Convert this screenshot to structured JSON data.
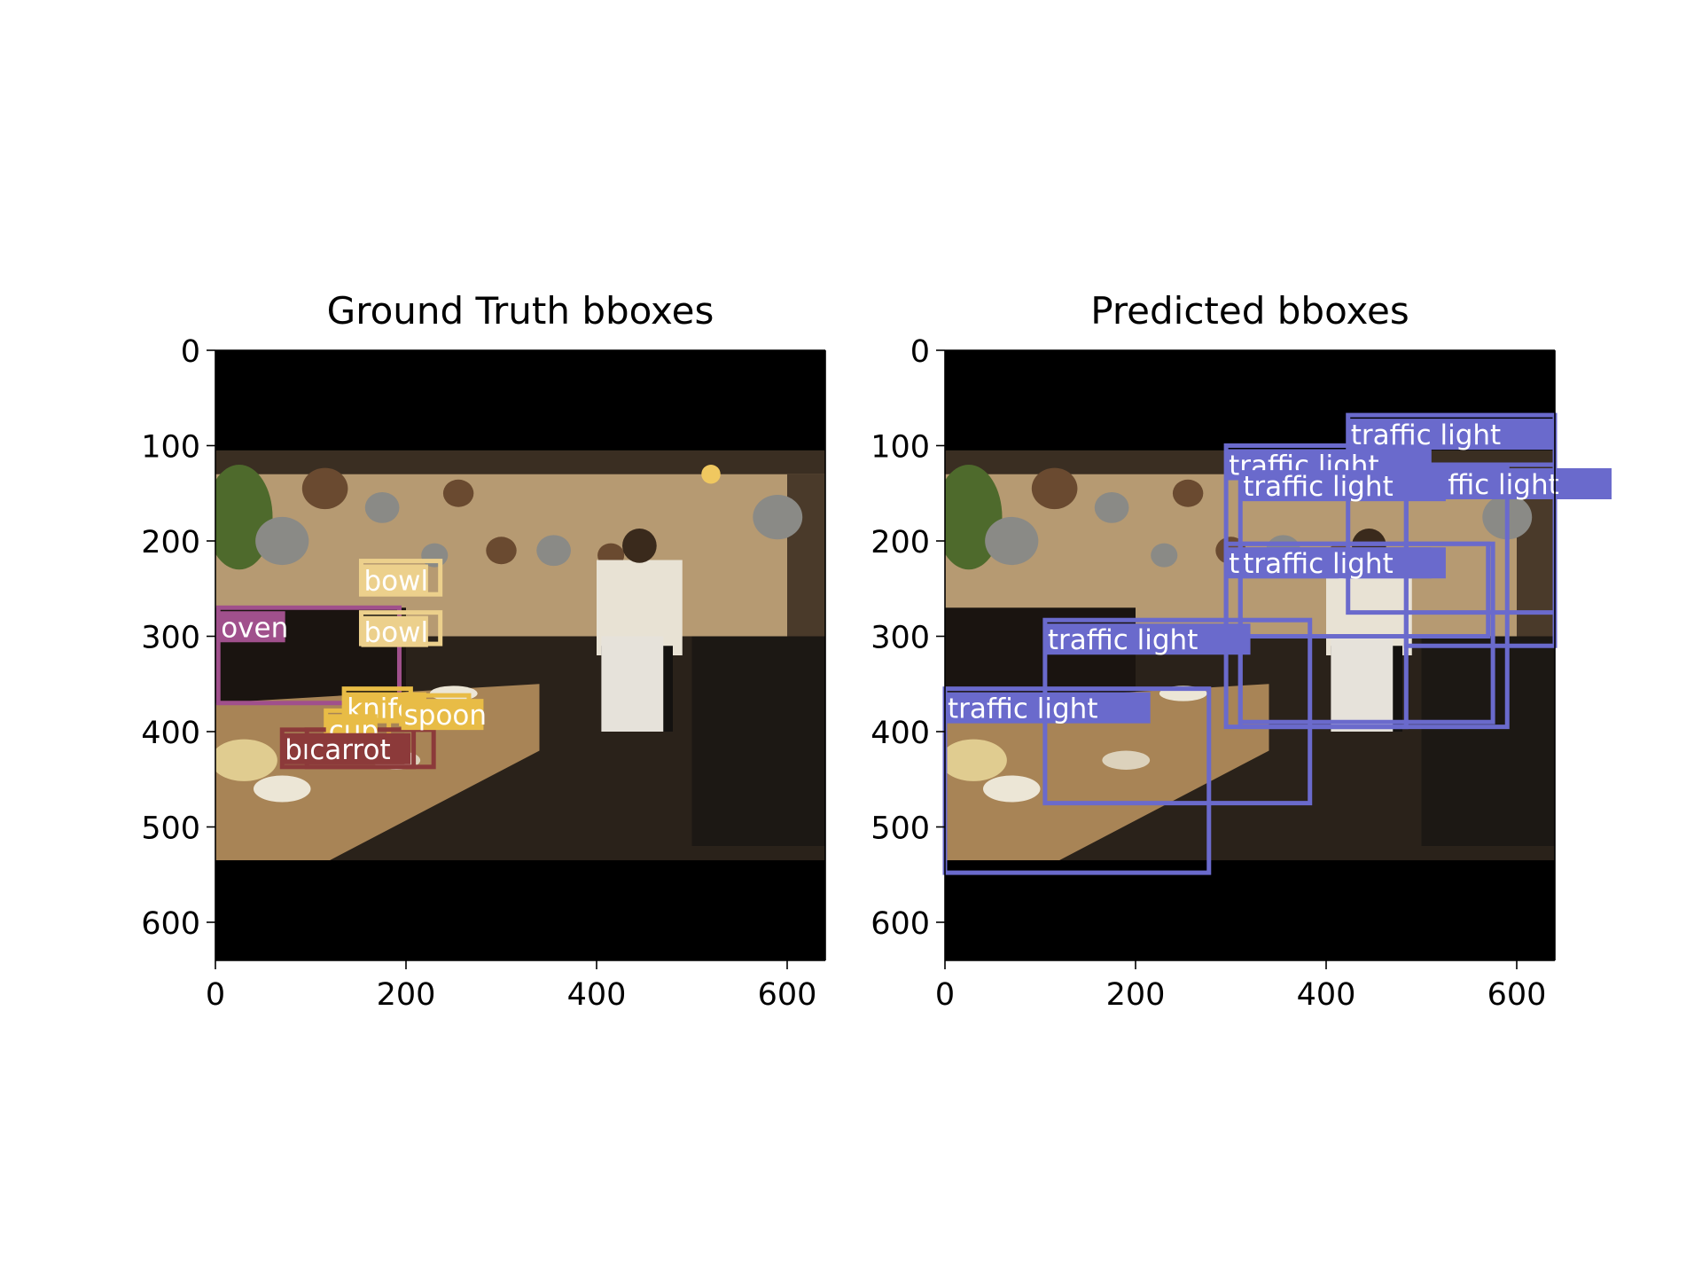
{
  "chart_data": [
    {
      "type": "image_with_bboxes",
      "title": "Ground Truth bboxes",
      "xlim": [
        0,
        640
      ],
      "ylim": [
        640,
        0
      ],
      "xticks": [
        0,
        200,
        400,
        600
      ],
      "yticks": [
        0,
        100,
        200,
        300,
        400,
        500,
        600
      ],
      "image_region": {
        "x0": 0,
        "y0": 105,
        "x1": 640,
        "y1": 535
      },
      "boxes": [
        {
          "label": "oven",
          "color": "#a0508c",
          "x0": 3,
          "y0": 270,
          "x1": 193,
          "y1": 370
        },
        {
          "label": "bowl",
          "color": "#ecd08c",
          "x0": 153,
          "y0": 221,
          "x1": 236,
          "y1": 256
        },
        {
          "label": "bowl",
          "color": "#ecd08c",
          "x0": 153,
          "y0": 275,
          "x1": 236,
          "y1": 308
        },
        {
          "label": "knife",
          "color": "#e8bc46",
          "x0": 135,
          "y0": 355,
          "x1": 205,
          "y1": 383
        },
        {
          "label": "spoon",
          "color": "#e8bc46",
          "x0": 195,
          "y0": 362,
          "x1": 266,
          "y1": 392
        },
        {
          "label": "cup",
          "color": "#e8bc46",
          "x0": 116,
          "y0": 378,
          "x1": 182,
          "y1": 408
        },
        {
          "label": "broccoli",
          "color": "#8c3a3a",
          "x0": 70,
          "y0": 398,
          "x1": 229,
          "y1": 437
        },
        {
          "label": "carrot",
          "color": "#8c3a3a",
          "x0": 96,
          "y0": 398,
          "x1": 208,
          "y1": 437
        }
      ]
    },
    {
      "type": "image_with_bboxes",
      "title": "Predicted bboxes",
      "xlim": [
        0,
        640
      ],
      "ylim": [
        640,
        0
      ],
      "xticks": [
        0,
        200,
        400,
        600
      ],
      "yticks": [
        0,
        100,
        200,
        300,
        400,
        500,
        600
      ],
      "image_region": {
        "x0": 0,
        "y0": 105,
        "x1": 640,
        "y1": 535
      },
      "boxes": [
        {
          "label": "traffic light",
          "color": "#6a6acc",
          "x0": 423,
          "y0": 68,
          "x1": 640,
          "y1": 275
        },
        {
          "label": "traffic light",
          "color": "#6a6acc",
          "x0": 295,
          "y0": 100,
          "x1": 484,
          "y1": 395
        },
        {
          "label": "traffic light",
          "color": "#6a6acc",
          "x0": 484,
          "y0": 120,
          "x1": 640,
          "y1": 310
        },
        {
          "label": "traffic light",
          "color": "#6a6acc",
          "x0": 310,
          "y0": 122,
          "x1": 590,
          "y1": 395
        },
        {
          "label": "traffic light",
          "color": "#6a6acc",
          "x0": 295,
          "y0": 203,
          "x1": 570,
          "y1": 300
        },
        {
          "label": "traffic light",
          "color": "#6a6acc",
          "x0": 310,
          "y0": 203,
          "x1": 575,
          "y1": 390
        },
        {
          "label": "traffic light",
          "color": "#6a6acc",
          "x0": 105,
          "y0": 283,
          "x1": 383,
          "y1": 475
        },
        {
          "label": "traffic light",
          "color": "#6a6acc",
          "x0": 0,
          "y0": 355,
          "x1": 277,
          "y1": 548
        }
      ]
    }
  ]
}
